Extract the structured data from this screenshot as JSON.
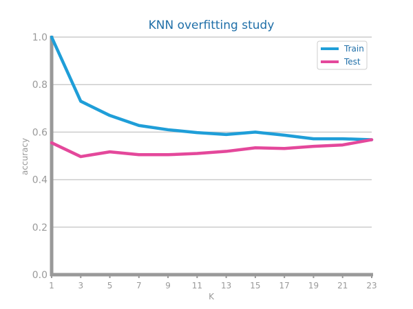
{
  "chart_data": {
    "type": "line",
    "title": "KNN overfitting study",
    "xlabel": "K",
    "ylabel": "accuracy",
    "x": [
      1,
      3,
      5,
      7,
      9,
      11,
      13,
      15,
      17,
      19,
      21,
      23
    ],
    "x_ticks": [
      "1",
      "3",
      "5",
      "7",
      "9",
      "11",
      "13",
      "15",
      "17",
      "19",
      "21",
      "23"
    ],
    "ylim": [
      0,
      1
    ],
    "y_ticks": [
      "0.0",
      "0.2",
      "0.4",
      "0.6",
      "0.8",
      "1.0"
    ],
    "grid": "horizontal",
    "legend_position": "top-right",
    "series": [
      {
        "name": "Train",
        "color": "#1f9ed8",
        "values": [
          1.0,
          0.73,
          0.67,
          0.628,
          0.61,
          0.598,
          0.59,
          0.6,
          0.587,
          0.572,
          0.572,
          0.568
        ]
      },
      {
        "name": "Test",
        "color": "#e4489b",
        "values": [
          0.555,
          0.497,
          0.517,
          0.505,
          0.505,
          0.51,
          0.519,
          0.534,
          0.531,
          0.54,
          0.546,
          0.568
        ]
      }
    ]
  },
  "colors": {
    "title": "#1f6fa8",
    "axis": "#999999",
    "grid": "#cccccc",
    "tick_text": "#999999"
  }
}
